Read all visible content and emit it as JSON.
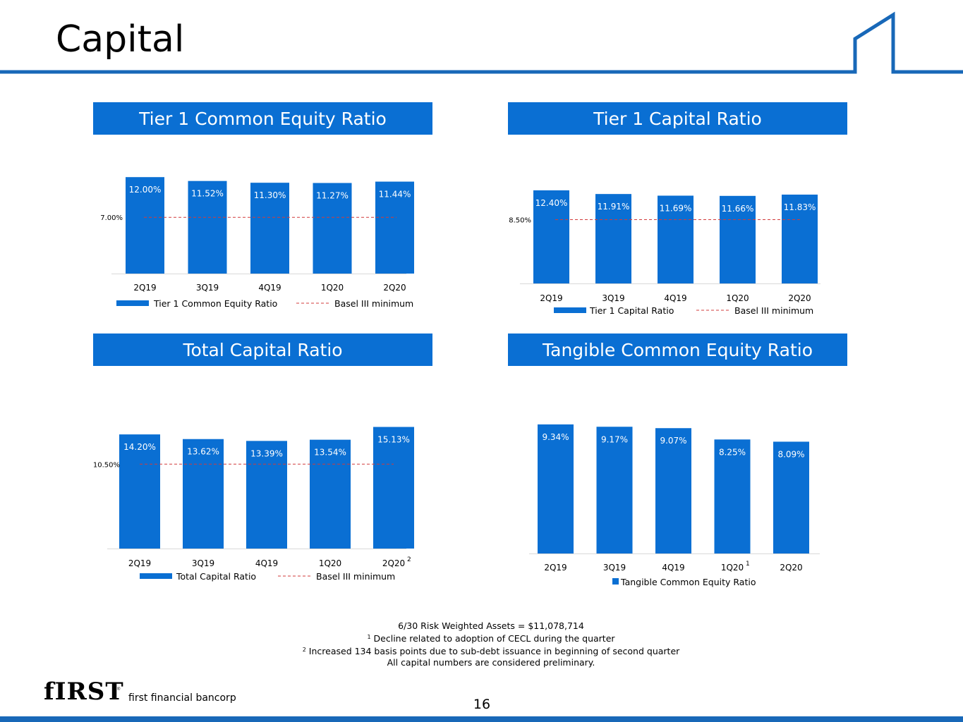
{
  "page": {
    "title": "Capital",
    "page_number": "16",
    "brand_mark": "fIRST",
    "brand_reg": "®",
    "brand_name": "first financial bancorp"
  },
  "colors": {
    "bar": "#0a6fd3",
    "accent_line": "#1868b8",
    "minimum_line": "#d13b3b"
  },
  "footnotes": {
    "line1": "6/30 Risk Weighted Assets = $11,078,714",
    "line2_mark": "1",
    "line2": "Decline related to adoption of CECL during the quarter",
    "line3_mark": "2",
    "line3": "Increased 134 basis points due to sub-debt issuance in beginning of second quarter",
    "line4": "All capital numbers are considered preliminary."
  },
  "chart_data": [
    {
      "type": "bar",
      "title": "Tier 1 Common Equity Ratio",
      "categories": [
        "2Q19",
        "3Q19",
        "4Q19",
        "1Q20",
        "2Q20"
      ],
      "category_marks": [
        "",
        "",
        "",
        "",
        ""
      ],
      "series": [
        {
          "name": "Tier 1 Common Equity Ratio",
          "values": [
            12.0,
            11.52,
            11.3,
            11.27,
            11.44
          ]
        }
      ],
      "value_labels": [
        "12.00%",
        "11.52%",
        "11.30%",
        "11.27%",
        "11.44%"
      ],
      "minimum": {
        "name": "Basel III minimum",
        "value": 7.0,
        "label": "7.00%"
      },
      "legend": "bottom"
    },
    {
      "type": "bar",
      "title": "Tier 1 Capital Ratio",
      "categories": [
        "2Q19",
        "3Q19",
        "4Q19",
        "1Q20",
        "2Q20"
      ],
      "category_marks": [
        "",
        "",
        "",
        "",
        ""
      ],
      "series": [
        {
          "name": "Tier 1 Capital Ratio",
          "values": [
            12.4,
            11.91,
            11.69,
            11.66,
            11.83
          ]
        }
      ],
      "value_labels": [
        "12.40%",
        "11.91%",
        "11.69%",
        "11.66%",
        "11.83%"
      ],
      "minimum": {
        "name": "Basel III minimum",
        "value": 8.5,
        "label": "8.50%"
      },
      "legend": "bottom"
    },
    {
      "type": "bar",
      "title": "Total Capital Ratio",
      "categories": [
        "2Q19",
        "3Q19",
        "4Q19",
        "1Q20",
        "2Q20"
      ],
      "category_marks": [
        "",
        "",
        "",
        "",
        "2"
      ],
      "series": [
        {
          "name": "Total Capital Ratio",
          "values": [
            14.2,
            13.62,
            13.39,
            13.54,
            15.13
          ]
        }
      ],
      "value_labels": [
        "14.20%",
        "13.62%",
        "13.39%",
        "13.54%",
        "15.13%"
      ],
      "minimum": {
        "name": "Basel III minimum",
        "value": 10.5,
        "label": "10.50%"
      },
      "legend": "bottom"
    },
    {
      "type": "bar",
      "title": "Tangible Common Equity Ratio",
      "categories": [
        "2Q19",
        "3Q19",
        "4Q19",
        "1Q20",
        "2Q20"
      ],
      "category_marks": [
        "",
        "",
        "",
        "1",
        ""
      ],
      "series": [
        {
          "name": "Tangible Common Equity Ratio",
          "values": [
            9.34,
            9.17,
            9.07,
            8.25,
            8.09
          ]
        }
      ],
      "value_labels": [
        "9.34%",
        "9.17%",
        "9.07%",
        "8.25%",
        "8.09%"
      ],
      "legend": "bottom"
    }
  ]
}
